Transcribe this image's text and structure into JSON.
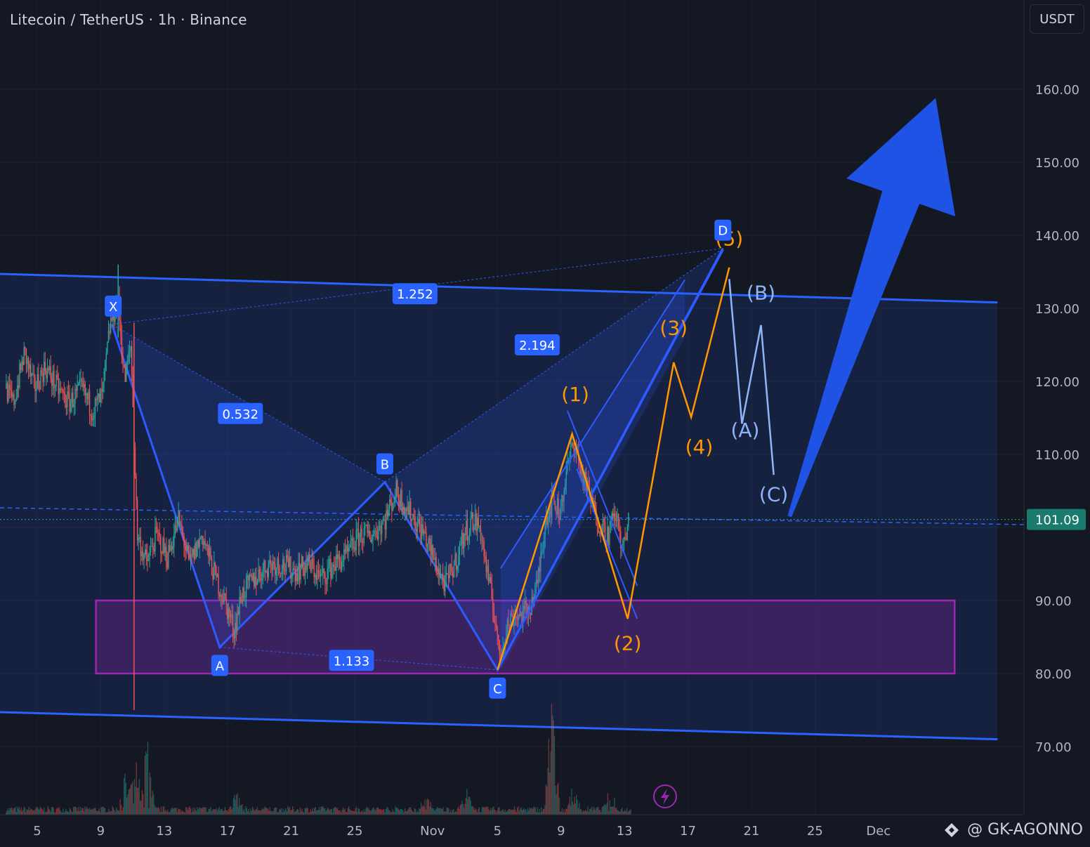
{
  "header": {
    "title": "Litecoin / TetherUS · 1h · Binance"
  },
  "currency_button": {
    "label": "USDT"
  },
  "watermark": {
    "text": "@ GK-AGONNO",
    "icon": "tradingview-logo-icon"
  },
  "colors": {
    "background": "#141823",
    "channel": "#2962ff",
    "pattern": "#2e5bff",
    "zone": "#9c27b0",
    "impulse": "#ff9800",
    "correction": "#90b4f8",
    "arrow": "#1e53e5",
    "up_candle": "#26a69a",
    "down_candle": "#ef5350",
    "label_bg": "#2962ff",
    "price_label_bg": "#1b7a6e"
  },
  "chart_data": {
    "type": "candlestick",
    "symbol": "Litecoin / TetherUS",
    "interval": "1h",
    "exchange": "Binance",
    "currency": "USDT",
    "y_axis": {
      "ticks": [
        "160.00",
        "150.00",
        "140.00",
        "130.00",
        "120.00",
        "110.00",
        "90.00",
        "80.00",
        "70.00"
      ],
      "ylim": [
        60,
        170
      ]
    },
    "x_axis": {
      "ticks": [
        {
          "label": "5",
          "t": 5
        },
        {
          "label": "9",
          "t": 9
        },
        {
          "label": "13",
          "t": 13
        },
        {
          "label": "17",
          "t": 17
        },
        {
          "label": "21",
          "t": 21
        },
        {
          "label": "25",
          "t": 25
        },
        {
          "label": "Nov",
          "t": 29.9
        },
        {
          "label": "5",
          "t": 34
        },
        {
          "label": "9",
          "t": 38
        },
        {
          "label": "13",
          "t": 42
        },
        {
          "label": "17",
          "t": 46
        },
        {
          "label": "21",
          "t": 50
        },
        {
          "label": "25",
          "t": 54
        },
        {
          "label": "Dec",
          "t": 58
        }
      ]
    },
    "last_price": {
      "label": "101.09",
      "value": 101.09
    },
    "price_path": [
      [
        3.0,
        119
      ],
      [
        3.5,
        117
      ],
      [
        4.2,
        124
      ],
      [
        4.8,
        119
      ],
      [
        5.5,
        122
      ],
      [
        6.3,
        119
      ],
      [
        7.0,
        117
      ],
      [
        7.8,
        119
      ],
      [
        8.5,
        116
      ],
      [
        9.1,
        118
      ],
      [
        9.6,
        128
      ],
      [
        10.1,
        131
      ],
      [
        10.5,
        120
      ],
      [
        10.9,
        125
      ],
      [
        11.3,
        99
      ],
      [
        11.9,
        95
      ],
      [
        12.5,
        99
      ],
      [
        13.2,
        96
      ],
      [
        13.9,
        101
      ],
      [
        14.6,
        95
      ],
      [
        15.4,
        99
      ],
      [
        16.1,
        94
      ],
      [
        16.8,
        90
      ],
      [
        17.4,
        86
      ],
      [
        17.9,
        91
      ],
      [
        18.7,
        93
      ],
      [
        19.6,
        95
      ],
      [
        20.4,
        95
      ],
      [
        21.3,
        94
      ],
      [
        22.1,
        95
      ],
      [
        22.9,
        93
      ],
      [
        23.7,
        95
      ],
      [
        24.5,
        96
      ],
      [
        25.3,
        99
      ],
      [
        26.1,
        99
      ],
      [
        26.9,
        101
      ],
      [
        27.6,
        105
      ],
      [
        28.2,
        103
      ],
      [
        28.8,
        101
      ],
      [
        29.4,
        99
      ],
      [
        30.1,
        95
      ],
      [
        30.7,
        92
      ],
      [
        31.3,
        95
      ],
      [
        31.9,
        99
      ],
      [
        32.4,
        101
      ],
      [
        32.9,
        100
      ],
      [
        33.4,
        93
      ],
      [
        33.9,
        87
      ],
      [
        34.1,
        82
      ],
      [
        34.5,
        86
      ],
      [
        35.0,
        88
      ],
      [
        35.5,
        88
      ],
      [
        36.0,
        89
      ],
      [
        36.5,
        92
      ],
      [
        37.0,
        101
      ],
      [
        37.5,
        104
      ],
      [
        37.9,
        102
      ],
      [
        38.4,
        108
      ],
      [
        38.8,
        112
      ],
      [
        39.2,
        108
      ],
      [
        39.7,
        105
      ],
      [
        40.3,
        101
      ],
      [
        41.0,
        99
      ],
      [
        41.4,
        102
      ],
      [
        41.9,
        97
      ],
      [
        42.3,
        101
      ]
    ],
    "volume_spikes": [
      [
        11.2,
        8
      ],
      [
        11.9,
        14
      ],
      [
        10.5,
        6
      ],
      [
        17.5,
        3
      ],
      [
        37.4,
        18
      ],
      [
        32.0,
        3
      ],
      [
        29.5,
        2
      ],
      [
        38.8,
        4
      ],
      [
        41.1,
        4
      ]
    ],
    "levels": {
      "dashed_mid": 102.5
    },
    "zone": {
      "t0": 8.7,
      "t1": 62.8,
      "low": 80.0,
      "high": 90.0
    },
    "channel": {
      "t0": 1.2,
      "t1": 65.5,
      "top_start": 134.8,
      "top_end": 130.8,
      "bot_start": 74.8,
      "bot_end": 71.0
    },
    "harmonic_pattern": {
      "points": [
        {
          "label": "X",
          "t": 9.7,
          "p": 127.8
        },
        {
          "label": "A",
          "t": 16.5,
          "p": 83.6
        },
        {
          "label": "B",
          "t": 26.9,
          "p": 106.2
        },
        {
          "label": "C",
          "t": 34.0,
          "p": 80.5
        },
        {
          "label": "D",
          "t": 48.2,
          "p": 138.2
        }
      ],
      "ratios": [
        {
          "label": "1.252",
          "t": 28.8,
          "p": 132.0
        },
        {
          "label": "0.532",
          "t": 17.8,
          "p": 115.6
        },
        {
          "label": "2.194",
          "t": 36.5,
          "p": 125.0
        },
        {
          "label": "1.133",
          "t": 24.8,
          "p": 81.8
        }
      ]
    },
    "impulse_wave": {
      "path": [
        [
          34.0,
          80.5
        ],
        [
          38.7,
          112.8
        ],
        [
          42.2,
          87.5
        ],
        [
          45.1,
          122.6
        ],
        [
          46.2,
          115.1
        ],
        [
          48.6,
          135.6
        ]
      ],
      "labels": [
        {
          "label": "(1)",
          "t": 38.9,
          "p": 117.3
        },
        {
          "label": "(2)",
          "t": 42.2,
          "p": 83.2
        },
        {
          "label": "(3)",
          "t": 45.1,
          "p": 126.4
        },
        {
          "label": "(4)",
          "t": 46.7,
          "p": 110.1
        },
        {
          "label": "(5)",
          "t": 48.6,
          "p": 138.6
        }
      ]
    },
    "correction_wave": {
      "path": [
        [
          48.6,
          134.0
        ],
        [
          49.4,
          114.2
        ],
        [
          50.6,
          127.7
        ],
        [
          51.4,
          107.2
        ]
      ],
      "labels": [
        {
          "label": "(B)",
          "t": 50.6,
          "p": 131.2
        },
        {
          "label": "(A)",
          "t": 49.6,
          "p": 112.4
        },
        {
          "label": "(C)",
          "t": 51.4,
          "p": 103.6
        }
      ]
    },
    "arrow": {
      "from": [
        52.4,
        101.5
      ],
      "to": [
        61.6,
        158.8
      ]
    }
  }
}
